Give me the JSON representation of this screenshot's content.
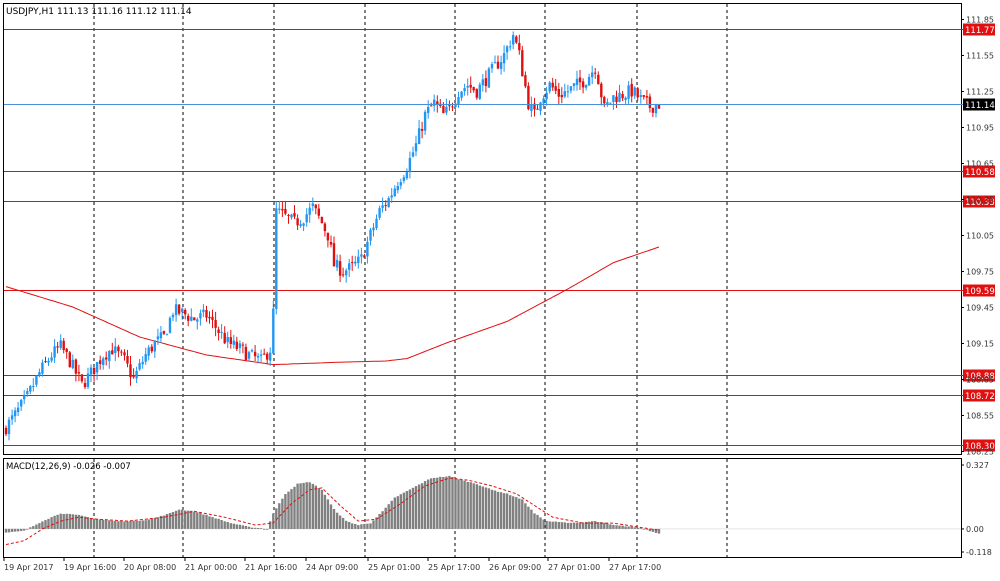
{
  "header": {
    "symbol_label": "USDJPY,H1",
    "ohlc_text": "111.13 111.16 111.12 111.14",
    "macd_label": "MACD(12,26,9) -0.026 -0.007"
  },
  "colors": {
    "bull": "#2196f3",
    "bear": "#e01010",
    "level_line": "#e01010",
    "level_label_bg": "#e01010",
    "current_price_line": "#4a90d9",
    "current_price_label_bg": "#000000",
    "ma": "#e01010",
    "macd_hist": "#808080",
    "macd_signal": "#e01010",
    "grid": "#000000",
    "axis_text": "#333333"
  },
  "chart_data": [
    {
      "type": "candlestick",
      "symbol": "USDJPY",
      "timeframe": "H1",
      "ylim": [
        108.25,
        111.85
      ],
      "y_ticks": [
        108.25,
        108.55,
        108.85,
        109.15,
        109.45,
        109.75,
        110.05,
        110.35,
        110.65,
        110.95,
        111.25,
        111.55,
        111.85
      ],
      "x_ticks": [
        "19 Apr 2017",
        "19 Apr 16:00",
        "20 Apr 08:00",
        "21 Apr 00:00",
        "21 Apr 16:00",
        "24 Apr 09:00",
        "25 Apr 01:00",
        "25 Apr 17:00",
        "26 Apr 09:00",
        "27 Apr 01:00",
        "27 Apr 17:00"
      ],
      "vertical_grid_labels": [
        "19 Apr 16:00",
        "21 Apr 00:00",
        "21 Apr 16:00",
        "25 Apr 01:00",
        "25 Apr 17:00",
        "26 Apr 09:00",
        "27 Apr 17:00"
      ],
      "horizontal_levels": [
        111.77,
        110.58,
        110.33,
        109.59,
        108.88,
        108.72,
        108.3
      ],
      "current_price": 111.14,
      "close_anchors": [
        [
          0,
          108.45
        ],
        [
          3,
          108.55
        ],
        [
          7,
          108.7
        ],
        [
          11,
          108.9
        ],
        [
          15,
          109.05
        ],
        [
          18,
          109.12
        ],
        [
          21,
          109.0
        ],
        [
          25,
          108.8
        ],
        [
          28,
          108.9
        ],
        [
          32,
          109.05
        ],
        [
          35,
          109.1
        ],
        [
          39,
          109.0
        ],
        [
          42,
          108.85
        ],
        [
          46,
          109.05
        ],
        [
          49,
          109.15
        ],
        [
          52,
          109.2
        ],
        [
          55,
          109.42
        ],
        [
          58,
          109.4
        ],
        [
          62,
          109.35
        ],
        [
          66,
          109.38
        ],
        [
          70,
          109.25
        ],
        [
          73,
          109.15
        ],
        [
          77,
          109.1
        ],
        [
          80,
          109.05
        ],
        [
          84,
          109.0
        ],
        [
          87,
          109.1
        ],
        [
          88,
          109.4
        ],
        [
          89,
          110.25
        ],
        [
          92,
          110.2
        ],
        [
          95,
          110.15
        ],
        [
          98,
          110.2
        ],
        [
          101,
          110.28
        ],
        [
          104,
          110.15
        ],
        [
          106,
          110.05
        ],
        [
          108,
          109.8
        ],
        [
          111,
          109.75
        ],
        [
          114,
          109.78
        ],
        [
          117,
          109.85
        ],
        [
          120,
          110.05
        ],
        [
          123,
          110.25
        ],
        [
          126,
          110.35
        ],
        [
          129,
          110.5
        ],
        [
          132,
          110.62
        ],
        [
          135,
          110.8
        ],
        [
          138,
          111.05
        ],
        [
          141,
          111.15
        ],
        [
          144,
          111.05
        ],
        [
          146,
          111.1
        ],
        [
          149,
          111.25
        ],
        [
          152,
          111.3
        ],
        [
          155,
          111.25
        ],
        [
          158,
          111.35
        ],
        [
          161,
          111.45
        ],
        [
          164,
          111.55
        ],
        [
          167,
          111.72
        ],
        [
          169,
          111.55
        ],
        [
          172,
          111.15
        ],
        [
          174,
          111.05
        ],
        [
          176,
          111.2
        ],
        [
          179,
          111.3
        ],
        [
          182,
          111.22
        ],
        [
          185,
          111.25
        ],
        [
          188,
          111.3
        ],
        [
          191,
          111.35
        ],
        [
          194,
          111.45
        ],
        [
          195,
          111.35
        ],
        [
          197,
          111.1
        ],
        [
          200,
          111.2
        ],
        [
          203,
          111.22
        ],
        [
          206,
          111.25
        ],
        [
          209,
          111.18
        ],
        [
          212,
          111.12
        ],
        [
          215,
          111.14
        ]
      ],
      "moving_average": {
        "points": [
          [
            0,
            109.62
          ],
          [
            22,
            109.45
          ],
          [
            44,
            109.2
          ],
          [
            66,
            109.05
          ],
          [
            88,
            108.97
          ],
          [
            110,
            108.99
          ],
          [
            125,
            109.0
          ],
          [
            132,
            109.02
          ],
          [
            145,
            109.15
          ],
          [
            165,
            109.33
          ],
          [
            185,
            109.6
          ],
          [
            200,
            109.82
          ],
          [
            215,
            109.95
          ]
        ]
      }
    },
    {
      "type": "bar",
      "name": "MACD(12,26,9)",
      "ylim": [
        -0.118,
        0.327
      ],
      "y_ticks": [
        0.327,
        0.0,
        -0.118
      ],
      "y_tick_labels": [
        "0.327",
        "0.00",
        "-0.118"
      ],
      "hist_anchors": [
        [
          0,
          -0.02
        ],
        [
          6,
          -0.01
        ],
        [
          12,
          0.04
        ],
        [
          18,
          0.08
        ],
        [
          24,
          0.07
        ],
        [
          30,
          0.05
        ],
        [
          36,
          0.04
        ],
        [
          42,
          0.04
        ],
        [
          48,
          0.05
        ],
        [
          54,
          0.08
        ],
        [
          57,
          0.1
        ],
        [
          62,
          0.09
        ],
        [
          68,
          0.06
        ],
        [
          74,
          0.03
        ],
        [
          80,
          0.01
        ],
        [
          86,
          0.0
        ],
        [
          88,
          0.08
        ],
        [
          92,
          0.18
        ],
        [
          96,
          0.23
        ],
        [
          100,
          0.24
        ],
        [
          104,
          0.2
        ],
        [
          108,
          0.1
        ],
        [
          112,
          0.04
        ],
        [
          116,
          0.02
        ],
        [
          120,
          0.03
        ],
        [
          124,
          0.09
        ],
        [
          128,
          0.16
        ],
        [
          134,
          0.21
        ],
        [
          140,
          0.26
        ],
        [
          146,
          0.27
        ],
        [
          150,
          0.25
        ],
        [
          155,
          0.23
        ],
        [
          160,
          0.2
        ],
        [
          165,
          0.18
        ],
        [
          170,
          0.15
        ],
        [
          174,
          0.08
        ],
        [
          178,
          0.04
        ],
        [
          186,
          0.03
        ],
        [
          194,
          0.04
        ],
        [
          200,
          0.02
        ],
        [
          206,
          0.01
        ],
        [
          210,
          0.0
        ],
        [
          215,
          -0.026
        ]
      ],
      "signal_anchors": [
        [
          0,
          -0.08
        ],
        [
          6,
          -0.06
        ],
        [
          12,
          0.0
        ],
        [
          18,
          0.04
        ],
        [
          24,
          0.06
        ],
        [
          30,
          0.05
        ],
        [
          40,
          0.04
        ],
        [
          52,
          0.06
        ],
        [
          62,
          0.09
        ],
        [
          72,
          0.06
        ],
        [
          82,
          0.02
        ],
        [
          88,
          0.03
        ],
        [
          94,
          0.13
        ],
        [
          100,
          0.2
        ],
        [
          104,
          0.21
        ],
        [
          110,
          0.12
        ],
        [
          116,
          0.04
        ],
        [
          122,
          0.05
        ],
        [
          130,
          0.13
        ],
        [
          138,
          0.22
        ],
        [
          146,
          0.26
        ],
        [
          152,
          0.25
        ],
        [
          160,
          0.22
        ],
        [
          168,
          0.18
        ],
        [
          174,
          0.12
        ],
        [
          180,
          0.06
        ],
        [
          190,
          0.03
        ],
        [
          200,
          0.03
        ],
        [
          208,
          0.01
        ],
        [
          215,
          -0.007
        ]
      ],
      "lines": [
        {
          "name": "MACD",
          "value": -0.026
        },
        {
          "name": "Signal",
          "value": -0.007
        }
      ]
    }
  ]
}
